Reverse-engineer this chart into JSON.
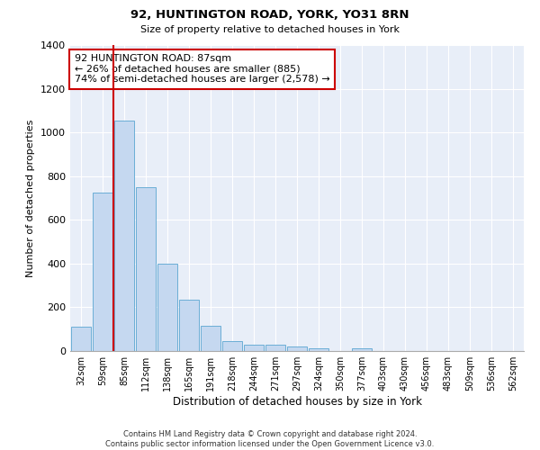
{
  "title": "92, HUNTINGTON ROAD, YORK, YO31 8RN",
  "subtitle": "Size of property relative to detached houses in York",
  "xlabel": "Distribution of detached houses by size in York",
  "ylabel": "Number of detached properties",
  "bar_color": "#c5d8f0",
  "bar_edge_color": "#6baed6",
  "background_color": "#e8eef8",
  "grid_color": "#ffffff",
  "vline_color": "#cc0000",
  "annotation_text": "92 HUNTINGTON ROAD: 87sqm\n← 26% of detached houses are smaller (885)\n74% of semi-detached houses are larger (2,578) →",
  "annotation_box_color": "#cc0000",
  "categories": [
    "32sqm",
    "59sqm",
    "85sqm",
    "112sqm",
    "138sqm",
    "165sqm",
    "191sqm",
    "218sqm",
    "244sqm",
    "271sqm",
    "297sqm",
    "324sqm",
    "350sqm",
    "377sqm",
    "403sqm",
    "430sqm",
    "456sqm",
    "483sqm",
    "509sqm",
    "536sqm",
    "562sqm"
  ],
  "values": [
    110,
    725,
    1055,
    750,
    400,
    235,
    115,
    45,
    28,
    28,
    20,
    12,
    0,
    12,
    0,
    0,
    0,
    0,
    0,
    0,
    0
  ],
  "ylim": [
    0,
    1400
  ],
  "yticks": [
    0,
    200,
    400,
    600,
    800,
    1000,
    1200,
    1400
  ],
  "footer": "Contains HM Land Registry data © Crown copyright and database right 2024.\nContains public sector information licensed under the Open Government Licence v3.0.",
  "vline_bar_index": 2
}
